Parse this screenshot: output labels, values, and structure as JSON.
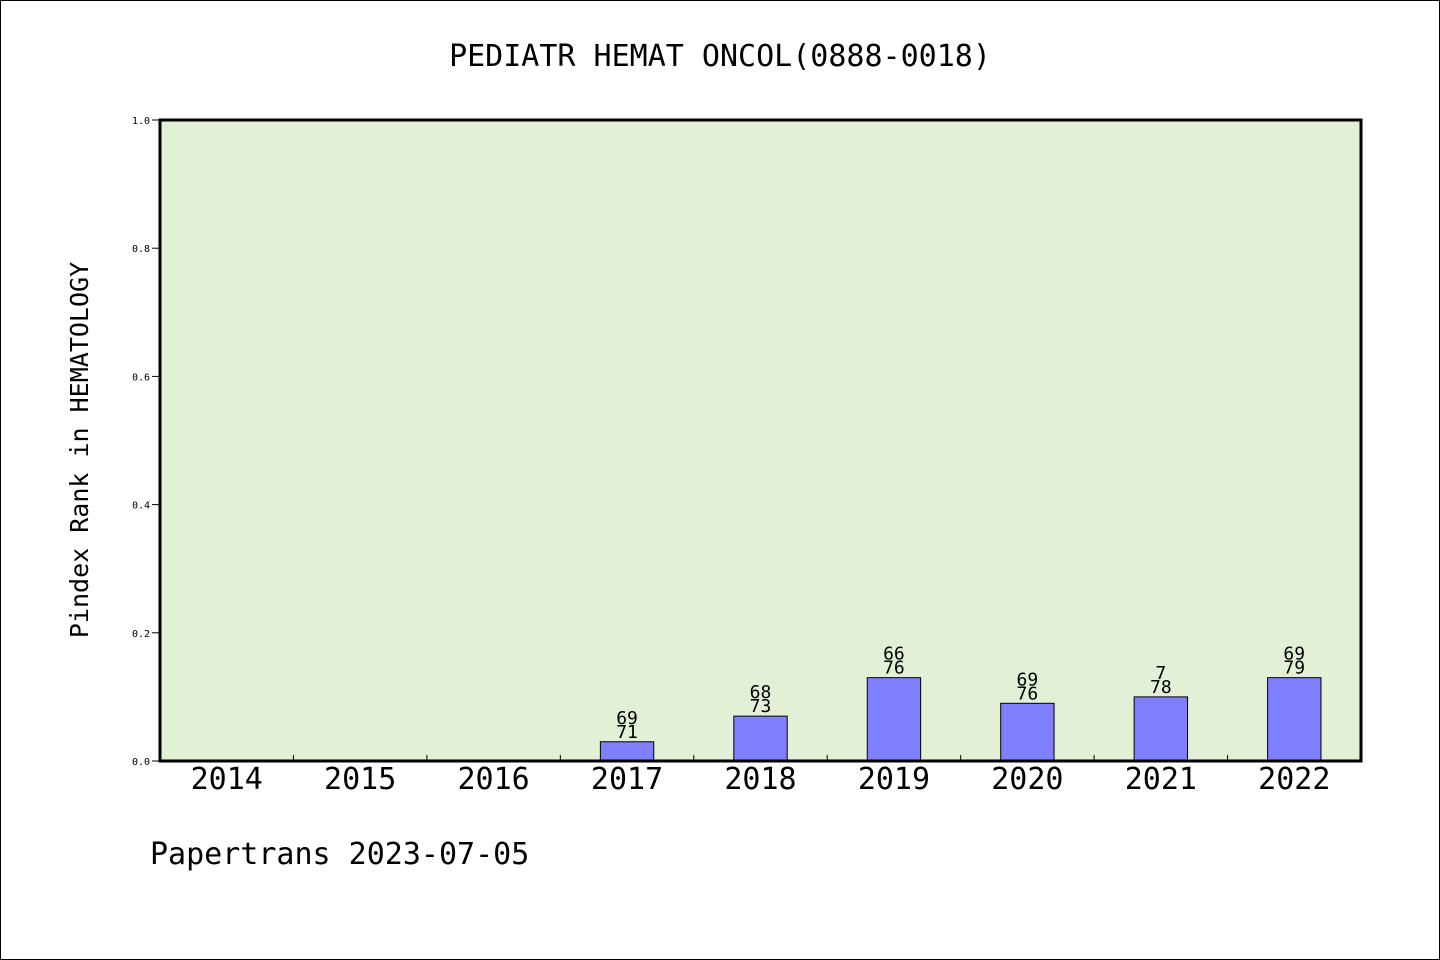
{
  "chart_data": {
    "type": "bar",
    "title": "PEDIATR HEMAT ONCOL(0888-0018)",
    "ylabel": "Pindex Rank in HEMATOLOGY",
    "xlabel": "",
    "categories": [
      "2014",
      "2015",
      "2016",
      "2017",
      "2018",
      "2019",
      "2020",
      "2021",
      "2022"
    ],
    "values": [
      0,
      0,
      0,
      0.03,
      0.07,
      0.13,
      0.09,
      0.1,
      0.13
    ],
    "labels_top": [
      "",
      "",
      "",
      "69",
      "68",
      "66",
      "69",
      "7",
      "69"
    ],
    "labels_bottom": [
      "",
      "",
      "",
      "71",
      "73",
      "76",
      "76",
      "78",
      "79"
    ],
    "ylim": [
      0,
      1.0
    ],
    "yticks": [
      "0.0",
      "0.2",
      "0.4",
      "0.6",
      "0.8",
      "1.0"
    ],
    "grid": false,
    "colors": {
      "plot_background": "#e2f0d6",
      "bar_fill": "#8080ff",
      "bar_stroke": "#000000"
    }
  },
  "footer": "Papertrans 2023-07-05"
}
